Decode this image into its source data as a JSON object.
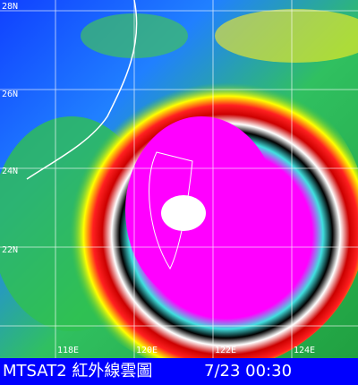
{
  "map": {
    "title": "MTSAT2 紅外線雲圖",
    "timestamp": "7/23 00:30",
    "latitude_labels": [
      "28N",
      "26N",
      "24N",
      "22N"
    ],
    "longitude_labels": [
      "118E",
      "120E",
      "122E",
      "124E"
    ]
  }
}
